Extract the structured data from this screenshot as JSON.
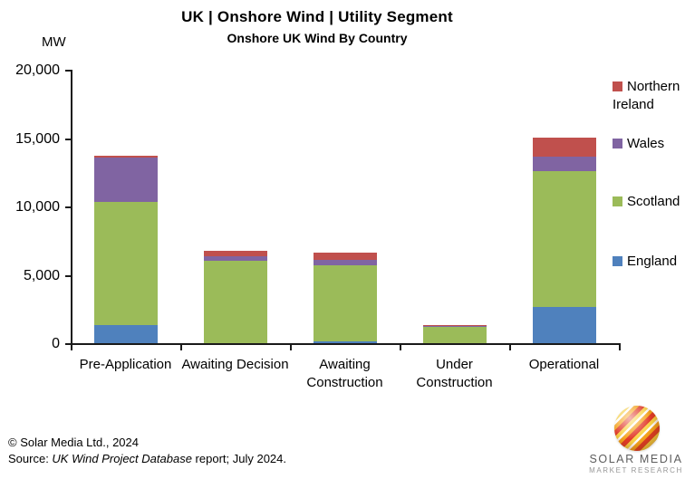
{
  "header": {
    "title": "UK | Onshore Wind | Utility Segment",
    "subtitle": "Onshore UK Wind By Country"
  },
  "chart_data": {
    "type": "bar",
    "stacked": true,
    "title": "UK | Onshore Wind | Utility Segment",
    "subtitle": "Onshore UK Wind By Country",
    "ylabel": "MW",
    "xlabel": "",
    "ylim": [
      0,
      20000
    ],
    "ytick_step": 5000,
    "ytick_labels": [
      "0",
      "5,000",
      "10,000",
      "15,000",
      "20,000"
    ],
    "grid": false,
    "legend_position": "right",
    "categories": [
      "Pre-Application",
      "Awaiting Decision",
      "Awaiting Construction",
      "Under Construction",
      "Operational"
    ],
    "series": [
      {
        "name": "England",
        "color": "#4F81BD",
        "values": [
          1300,
          0,
          130,
          0,
          2650
        ]
      },
      {
        "name": "Scotland",
        "color": "#9BBB59",
        "values": [
          9000,
          6025,
          5560,
          1250,
          9930
        ]
      },
      {
        "name": "Wales",
        "color": "#8064A2",
        "values": [
          3300,
          350,
          400,
          40,
          1060
        ]
      },
      {
        "name": "Northern Ireland",
        "color": "#C0504D",
        "values": [
          100,
          375,
          550,
          40,
          1390
        ]
      }
    ],
    "totals": [
      13700,
      6750,
      6640,
      1330,
      15030
    ]
  },
  "footer": {
    "copyright": "© Solar Media Ltd., 2024",
    "source_prefix": "Source: ",
    "source_italic": "UK Wind Project Database",
    "source_suffix": " report; July 2024."
  },
  "logo": {
    "line1": "SOLAR MEDIA",
    "line2": "MARKET RESEARCH"
  }
}
